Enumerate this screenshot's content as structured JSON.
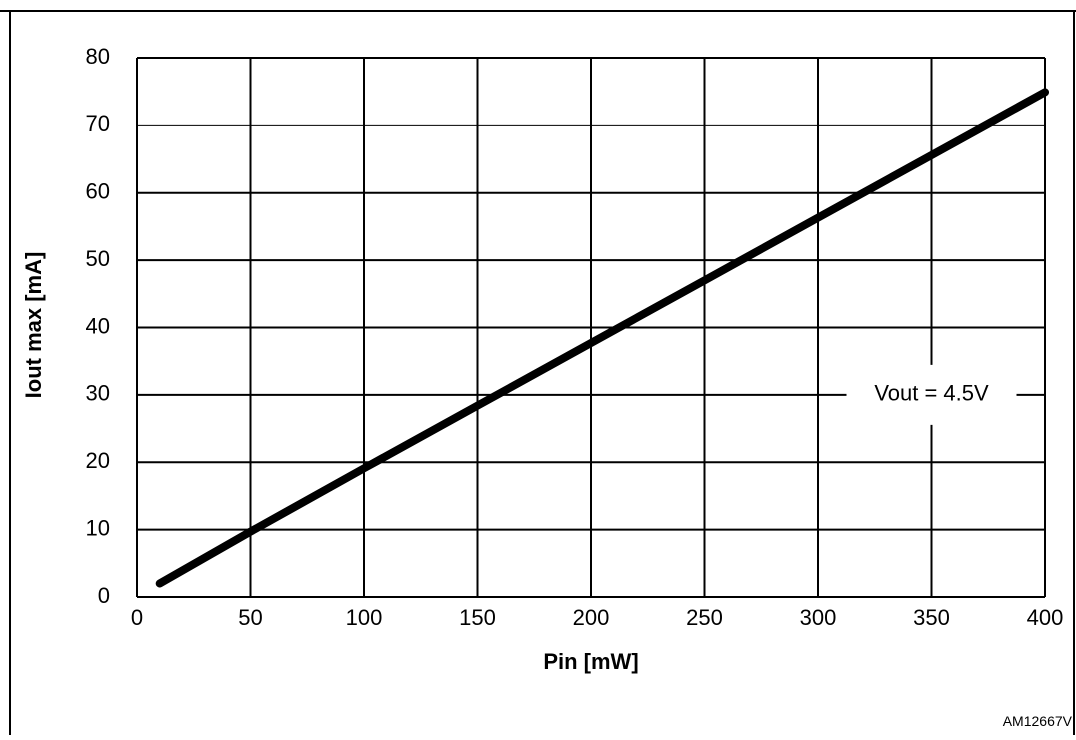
{
  "figure_caption": "",
  "figure_code": "AM12667V",
  "chart_data": {
    "type": "line",
    "title": "",
    "xlabel": "Pin [mW]",
    "ylabel": "Iout max [mA]",
    "xlim": [
      0,
      400
    ],
    "ylim": [
      0,
      80
    ],
    "xticks": [
      0,
      50,
      100,
      150,
      200,
      250,
      300,
      350,
      400
    ],
    "yticks": [
      0,
      10,
      20,
      30,
      40,
      50,
      60,
      70,
      80
    ],
    "grid": true,
    "annotation": {
      "text": "Vout = 4.5V",
      "x": 350,
      "y": 30
    },
    "series": [
      {
        "name": "",
        "x": [
          10,
          50,
          100,
          150,
          200,
          250,
          300,
          350,
          400
        ],
        "y": [
          2,
          9.7,
          19.1,
          28.4,
          37.7,
          47,
          56.3,
          65.6,
          74.9
        ]
      }
    ],
    "line_color": "#000000"
  }
}
